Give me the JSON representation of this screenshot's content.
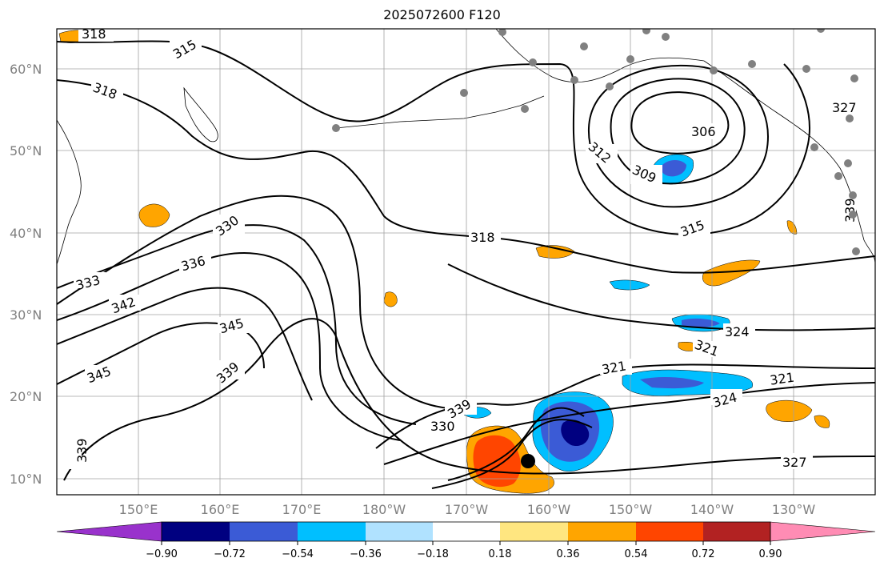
{
  "title": "2025072600 F120",
  "map": {
    "lat_labels": [
      "60°N",
      "50°N",
      "40°N",
      "30°N",
      "20°N",
      "10°N"
    ],
    "lon_labels": [
      "150°E",
      "160°E",
      "170°E",
      "180°W",
      "170°W",
      "160°W",
      "150°W",
      "140°W",
      "130°W"
    ],
    "contour_labels": [
      "318",
      "315",
      "306",
      "312",
      "309",
      "315",
      "318",
      "318",
      "327",
      "330",
      "336",
      "333",
      "342",
      "345",
      "345",
      "339",
      "339",
      "330",
      "324",
      "321",
      "321",
      "321",
      "324",
      "327",
      "339",
      "339"
    ]
  },
  "colorbar": {
    "ticks": [
      "−0.90",
      "−0.72",
      "−0.54",
      "−0.36",
      "−0.18",
      "0.18",
      "0.36",
      "0.54",
      "0.72",
      "0.90"
    ],
    "colors": [
      "#9932cc",
      "#000080",
      "#3b5bd6",
      "#00bfff",
      "#b0e2ff",
      "#ffffff",
      "#ffe680",
      "#ffa500",
      "#ff4500",
      "#b22222",
      "#ff8cb4"
    ]
  },
  "colors": {
    "contour": "#000000",
    "grid": "#a0a0a0",
    "station": "#808080",
    "storm_center": "#000000"
  }
}
